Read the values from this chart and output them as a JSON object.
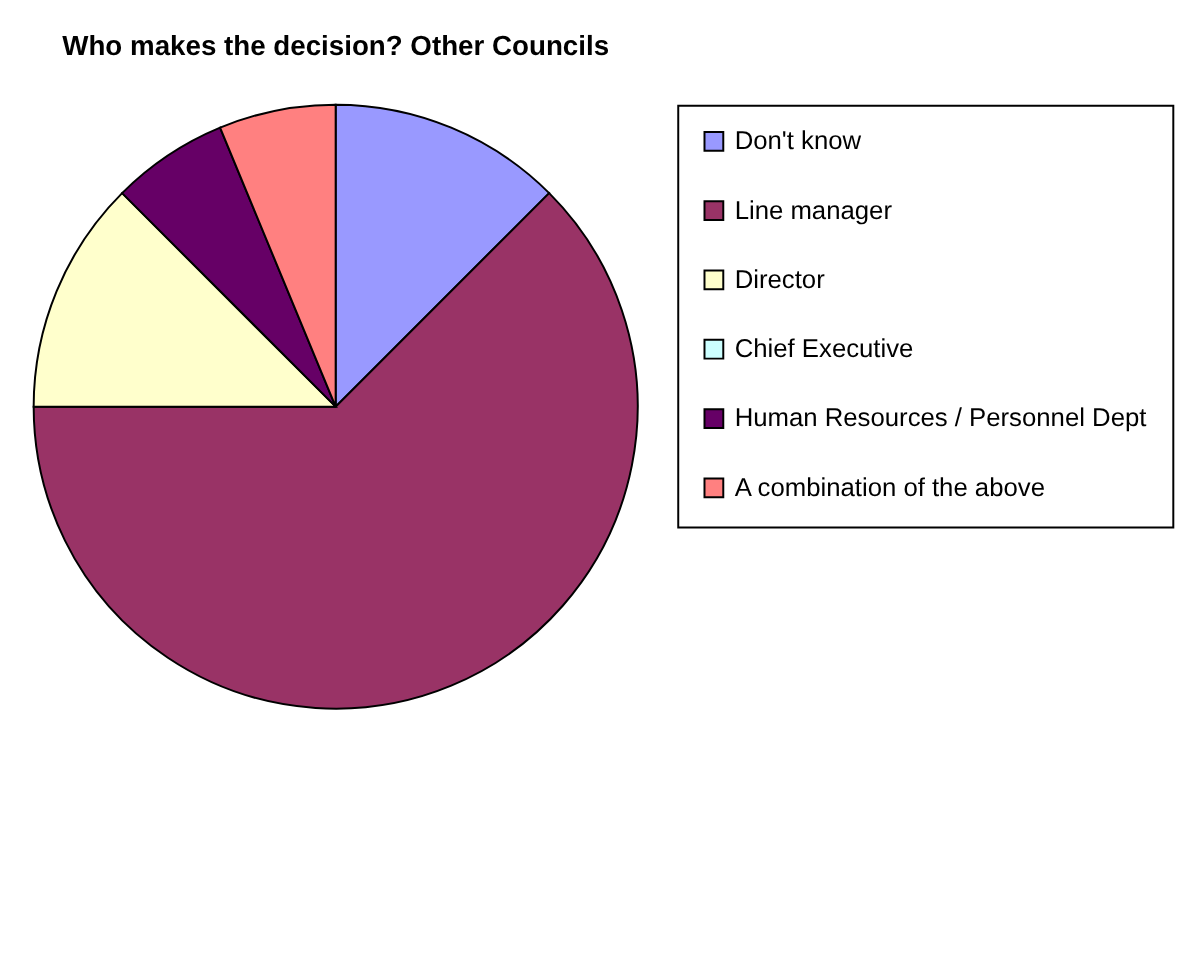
{
  "chart_data": {
    "type": "pie",
    "title": "Who makes the decision? Other Councils",
    "categories": [
      "Don't know",
      "Line manager",
      "Director",
      "Chief Executive",
      "Human Resources / Personnel Dept",
      "A combination of the above"
    ],
    "values": [
      12.5,
      62.5,
      12.5,
      0,
      6.25,
      6.25
    ],
    "colors": [
      "#9999ff",
      "#993366",
      "#ffffcc",
      "#ccffff",
      "#660066",
      "#ff8080"
    ],
    "legend": "right"
  }
}
